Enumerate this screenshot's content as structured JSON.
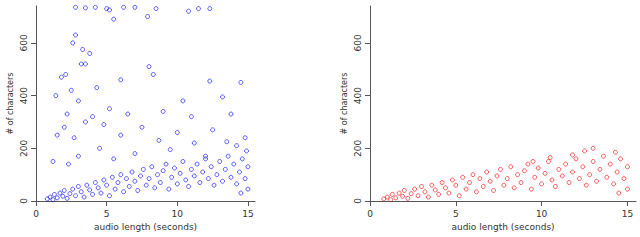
{
  "chart_data": [
    {
      "type": "scatter",
      "xlabel": "audio length (seconds)",
      "ylabel": "# of characters",
      "color": "#0000ff",
      "marker": "circle",
      "grid": false,
      "xlim": [
        0,
        15.5
      ],
      "xticks": [
        0,
        5,
        10,
        15
      ],
      "ylim": [
        0,
        740
      ],
      "yticks": [
        0,
        200,
        400,
        600
      ],
      "x": [
        0.8,
        1,
        1.2,
        1.3,
        1.5,
        1.7,
        1.9,
        2,
        2.2,
        2.4,
        2.6,
        2.8,
        3,
        3.2,
        3.4,
        3.6,
        3.8,
        4,
        4.2,
        4.4,
        4.6,
        4.8,
        5,
        5.2,
        5.4,
        5.6,
        5.8,
        6,
        6.2,
        6.4,
        6.6,
        6.8,
        7,
        7.2,
        7.4,
        7.6,
        7.8,
        8,
        8.2,
        8.4,
        8.6,
        8.8,
        9,
        9.2,
        9.4,
        9.6,
        9.8,
        10,
        10.2,
        10.4,
        10.6,
        10.8,
        11,
        11.2,
        11.4,
        11.6,
        11.8,
        12,
        12.2,
        12.4,
        12.6,
        12.8,
        13,
        13.2,
        13.4,
        13.6,
        13.8,
        14,
        14.2,
        14.4,
        14.6,
        14.8,
        15,
        15,
        14.5,
        2.8,
        3.5,
        4.2,
        5,
        5.2,
        6.2,
        7,
        8.5,
        11.5,
        10.8,
        12.3,
        5.5,
        7.9,
        2.8,
        2.6,
        3.3,
        3.8,
        2.1,
        1.8,
        3.2,
        3.5,
        4.3,
        2.5,
        6,
        8,
        8.3,
        12.3,
        14.5,
        13.2,
        10.4,
        1.4,
        3,
        5.2,
        2.2,
        4,
        6.5,
        9,
        11,
        13.8,
        2,
        3.5,
        4.8,
        7.5,
        10,
        12.5,
        14.8,
        1.5,
        2.7,
        6,
        8.7,
        11.2,
        13.5,
        14.2,
        4.5,
        9.5,
        7,
        12,
        14.9,
        3,
        5.5,
        1.2,
        2.3
      ],
      "values": [
        8,
        15,
        5,
        25,
        12,
        30,
        18,
        40,
        10,
        28,
        45,
        20,
        55,
        35,
        15,
        60,
        42,
        25,
        70,
        50,
        30,
        80,
        60,
        20,
        90,
        45,
        70,
        100,
        35,
        85,
        55,
        110,
        75,
        40,
        95,
        120,
        60,
        85,
        130,
        50,
        100,
        70,
        115,
        140,
        45,
        90,
        125,
        65,
        105,
        150,
        80,
        55,
        120,
        95,
        140,
        70,
        110,
        160,
        85,
        130,
        60,
        100,
        150,
        75,
        120,
        170,
        90,
        140,
        65,
        110,
        160,
        85,
        130,
        45,
        30,
        735,
        733,
        735,
        730,
        725,
        735,
        735,
        730,
        730,
        720,
        730,
        690,
        700,
        630,
        600,
        575,
        560,
        480,
        470,
        520,
        520,
        430,
        420,
        460,
        510,
        480,
        455,
        450,
        395,
        380,
        400,
        380,
        350,
        330,
        320,
        330,
        340,
        320,
        330,
        280,
        300,
        290,
        280,
        260,
        270,
        240,
        250,
        240,
        250,
        230,
        220,
        225,
        210,
        200,
        195,
        180,
        170,
        190,
        170,
        160,
        150,
        140
      ]
    },
    {
      "type": "scatter",
      "xlabel": "audio length (seconds)",
      "ylabel": "# of characters",
      "color": "#ff0000",
      "marker": "circle",
      "grid": false,
      "xlim": [
        0,
        15.5
      ],
      "xticks": [
        0,
        5,
        10,
        15
      ],
      "ylim": [
        0,
        740
      ],
      "yticks": [
        0,
        200,
        400,
        600
      ],
      "x": [
        0.8,
        1,
        1.2,
        1.3,
        1.5,
        1.7,
        1.9,
        2,
        2.2,
        2.4,
        2.6,
        2.8,
        3,
        3.2,
        3.4,
        3.6,
        3.8,
        4,
        4.2,
        4.4,
        4.6,
        4.8,
        5,
        5.2,
        5.4,
        5.6,
        5.8,
        6,
        6.2,
        6.4,
        6.6,
        6.8,
        7,
        7.2,
        7.4,
        7.6,
        7.8,
        8,
        8.2,
        8.4,
        8.6,
        8.8,
        9,
        9.2,
        9.4,
        9.6,
        9.8,
        10,
        10.2,
        10.4,
        10.6,
        10.8,
        11,
        11.2,
        11.4,
        11.6,
        11.8,
        12,
        12.2,
        12.4,
        12.6,
        12.8,
        13,
        13.2,
        13.4,
        13.6,
        13.8,
        14,
        14.2,
        14.4,
        14.6,
        14.8,
        15,
        15,
        14.5,
        12.5,
        13,
        11.8,
        14.3,
        10.5,
        9.5
      ],
      "values": [
        8,
        15,
        5,
        25,
        12,
        30,
        18,
        40,
        10,
        28,
        45,
        20,
        55,
        35,
        15,
        60,
        42,
        25,
        70,
        50,
        30,
        80,
        60,
        20,
        90,
        45,
        70,
        100,
        35,
        85,
        55,
        110,
        75,
        40,
        95,
        120,
        60,
        85,
        130,
        50,
        100,
        70,
        115,
        140,
        45,
        90,
        125,
        65,
        105,
        150,
        80,
        55,
        120,
        95,
        140,
        70,
        110,
        160,
        85,
        130,
        60,
        100,
        150,
        75,
        120,
        170,
        90,
        140,
        65,
        110,
        160,
        85,
        130,
        45,
        30,
        190,
        200,
        175,
        185,
        165,
        150
      ]
    }
  ]
}
